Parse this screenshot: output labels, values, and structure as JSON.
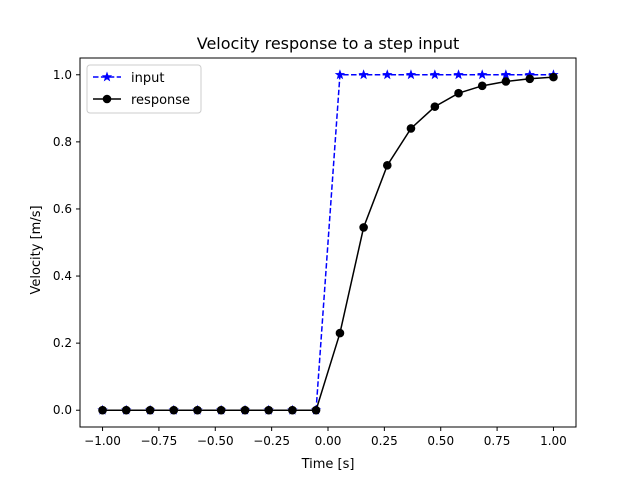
{
  "chart_data": {
    "type": "line",
    "title": "Velocity response to a step input",
    "xlabel": "Time [s]",
    "ylabel": "Velocity [m/s]",
    "xlim": [
      -1.1,
      1.1
    ],
    "ylim": [
      -0.05,
      1.05
    ],
    "xticks": [
      -1.0,
      -0.75,
      -0.5,
      -0.25,
      0.0,
      0.25,
      0.5,
      0.75,
      1.0
    ],
    "xtick_labels": [
      "−1.00",
      "−0.75",
      "−0.50",
      "−0.25",
      "0.00",
      "0.25",
      "0.50",
      "0.75",
      "1.00"
    ],
    "yticks": [
      0.0,
      0.2,
      0.4,
      0.6,
      0.8,
      1.0
    ],
    "ytick_labels": [
      "0.0",
      "0.2",
      "0.4",
      "0.6",
      "0.8",
      "1.0"
    ],
    "grid": false,
    "legend": {
      "location": "upper-left"
    },
    "x": [
      -1.0,
      -0.895,
      -0.789,
      -0.684,
      -0.579,
      -0.474,
      -0.368,
      -0.263,
      -0.158,
      -0.053,
      0.053,
      0.158,
      0.263,
      0.368,
      0.474,
      0.579,
      0.684,
      0.789,
      0.895,
      1.0
    ],
    "series": [
      {
        "name": "input",
        "color": "#0000ff",
        "line_style": "dashed",
        "marker": "star",
        "values": [
          0,
          0,
          0,
          0,
          0,
          0,
          0,
          0,
          0,
          0,
          1,
          1,
          1,
          1,
          1,
          1,
          1,
          1,
          1,
          1
        ]
      },
      {
        "name": "response",
        "color": "#000000",
        "line_style": "solid",
        "marker": "circle",
        "values": [
          0,
          0,
          0,
          0,
          0,
          0,
          0,
          0,
          0,
          0,
          0.23,
          0.545,
          0.73,
          0.84,
          0.905,
          0.945,
          0.967,
          0.98,
          0.988,
          0.993
        ]
      }
    ]
  }
}
